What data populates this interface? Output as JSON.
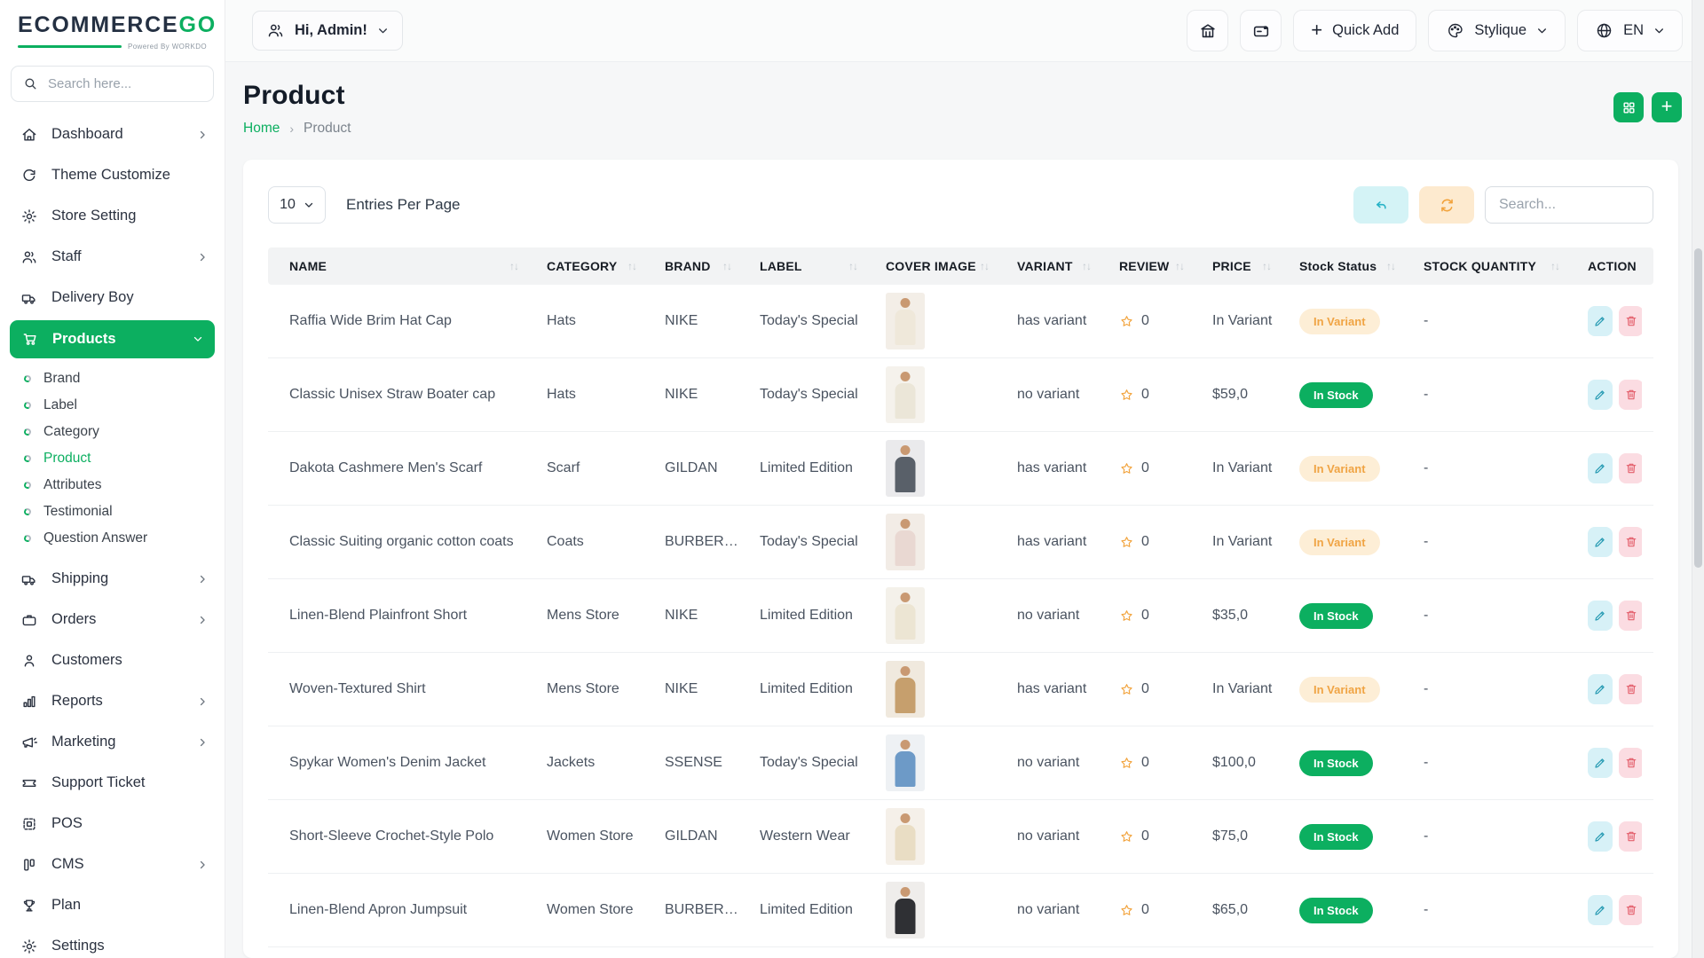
{
  "brand": {
    "logo_main": "ECOMMERCE",
    "logo_accent": "GO",
    "powered_by": "Powered By WORKDO",
    "accent_color": "#0caf60"
  },
  "sidebar": {
    "search_placeholder": "Search here...",
    "search_icon": "search-icon",
    "items": [
      {
        "label": "Dashboard",
        "icon": "home",
        "chevron": "right",
        "active": false
      },
      {
        "label": "Theme Customize",
        "icon": "theme",
        "chevron": null,
        "active": false
      },
      {
        "label": "Store Setting",
        "icon": "gear",
        "chevron": null,
        "active": false
      },
      {
        "label": "Staff",
        "icon": "users",
        "chevron": "right",
        "active": false
      },
      {
        "label": "Delivery Boy",
        "icon": "truck",
        "chevron": null,
        "active": false
      },
      {
        "label": "Products",
        "icon": "cart",
        "chevron": "down",
        "active": true,
        "submenu": [
          {
            "label": "Brand",
            "active": false
          },
          {
            "label": "Label",
            "active": false
          },
          {
            "label": "Category",
            "active": false
          },
          {
            "label": "Product",
            "active": true
          },
          {
            "label": "Attributes",
            "active": false
          },
          {
            "label": "Testimonial",
            "active": false
          },
          {
            "label": "Question Answer",
            "active": false
          }
        ]
      },
      {
        "label": "Shipping",
        "icon": "truck",
        "chevron": "right",
        "active": false
      },
      {
        "label": "Orders",
        "icon": "briefcase",
        "chevron": "right",
        "active": false
      },
      {
        "label": "Customers",
        "icon": "user",
        "chevron": null,
        "active": false
      },
      {
        "label": "Reports",
        "icon": "chart",
        "chevron": "right",
        "active": false
      },
      {
        "label": "Marketing",
        "icon": "megaphone",
        "chevron": "right",
        "active": false
      },
      {
        "label": "Support Ticket",
        "icon": "ticket",
        "chevron": null,
        "active": false
      },
      {
        "label": "POS",
        "icon": "pos",
        "chevron": null,
        "active": false
      },
      {
        "label": "CMS",
        "icon": "cms",
        "chevron": "right",
        "active": false
      },
      {
        "label": "Plan",
        "icon": "trophy",
        "chevron": null,
        "active": false
      },
      {
        "label": "Settings",
        "icon": "gear",
        "chevron": null,
        "active": false
      }
    ]
  },
  "header": {
    "user_label": "Hi, Admin!",
    "user_icon": "users",
    "storefront_icon": "storefront",
    "mail_icon": "mail",
    "quick_add_label": "Quick Add",
    "store_icon": "palette",
    "store_name": "Stylique",
    "language_icon": "globe",
    "language": "EN"
  },
  "page": {
    "title": "Product",
    "breadcrumb_home": "Home",
    "breadcrumb_separator": "›",
    "breadcrumb_current": "Product",
    "grid_view_icon": "grid",
    "add_icon": "plus"
  },
  "toolbar": {
    "entries_value": "10",
    "entries_label": "Entries Per Page",
    "undo_icon": "undo",
    "refresh_icon": "refresh",
    "search_placeholder": "Search..."
  },
  "table": {
    "columns": [
      {
        "label": "NAME",
        "sortable": true
      },
      {
        "label": "CATEGORY",
        "sortable": true
      },
      {
        "label": "BRAND",
        "sortable": true
      },
      {
        "label": "LABEL",
        "sortable": true
      },
      {
        "label": "COVER IMAGE",
        "sortable": true
      },
      {
        "label": "VARIANT",
        "sortable": true
      },
      {
        "label": "REVIEW",
        "sortable": true
      },
      {
        "label": "PRICE",
        "sortable": true
      },
      {
        "label": "Stock Status",
        "sortable": true
      },
      {
        "label": "STOCK QUANTITY",
        "sortable": true
      },
      {
        "label": "ACTION",
        "sortable": false
      }
    ],
    "badge_colors": {
      "stock_bg": "#0caf60",
      "stock_text": "#ffffff",
      "variant_bg": "#fdeed6",
      "variant_text": "#f0a444"
    },
    "rows": [
      {
        "name": "Raffia Wide Brim Hat Cap",
        "category": "Hats",
        "brand": "NIKE",
        "label": "Today's Special",
        "variant": "has variant",
        "review": "0",
        "price": "In Variant",
        "stock_status": "In Variant",
        "stock_type": "variant",
        "stock_quantity": "-",
        "cover": {
          "bg": "#f3eee7",
          "cloth": "#efe8da",
          "skin": "#c99972"
        }
      },
      {
        "name": "Classic Unisex Straw Boater cap",
        "category": "Hats",
        "brand": "NIKE",
        "label": "Today's Special",
        "variant": "no variant",
        "review": "0",
        "price": "$59,0",
        "stock_status": "In Stock",
        "stock_type": "stock",
        "stock_quantity": "-",
        "cover": {
          "bg": "#f5f2ec",
          "cloth": "#ebe6d8",
          "skin": "#c99972"
        }
      },
      {
        "name": "Dakota Cashmere Men's Scarf",
        "category": "Scarf",
        "brand": "GILDAN",
        "label": "Limited Edition",
        "variant": "has variant",
        "review": "0",
        "price": "In Variant",
        "stock_status": "In Variant",
        "stock_type": "variant",
        "stock_quantity": "-",
        "cover": {
          "bg": "#eaeaec",
          "cloth": "#596069",
          "skin": "#c99972"
        }
      },
      {
        "name": "Classic Suiting organic cotton coats",
        "category": "Coats",
        "brand": "BURBERRY",
        "label": "Today's Special",
        "variant": "has variant",
        "review": "0",
        "price": "In Variant",
        "stock_status": "In Variant",
        "stock_type": "variant",
        "stock_quantity": "-",
        "cover": {
          "bg": "#f2ece6",
          "cloth": "#e9d8d2",
          "skin": "#c99972"
        }
      },
      {
        "name": "Linen-Blend Plainfront Short",
        "category": "Mens Store",
        "brand": "NIKE",
        "label": "Limited Edition",
        "variant": "no variant",
        "review": "0",
        "price": "$35,0",
        "stock_status": "In Stock",
        "stock_type": "stock",
        "stock_quantity": "-",
        "cover": {
          "bg": "#f4f1ea",
          "cloth": "#ece5d3",
          "skin": "#c99972"
        }
      },
      {
        "name": "Woven-Textured Shirt",
        "category": "Mens Store",
        "brand": "NIKE",
        "label": "Limited Edition",
        "variant": "has variant",
        "review": "0",
        "price": "In Variant",
        "stock_status": "In Variant",
        "stock_type": "variant",
        "stock_quantity": "-",
        "cover": {
          "bg": "#f0e9de",
          "cloth": "#c69f6d",
          "skin": "#c99972"
        }
      },
      {
        "name": "Spykar Women's Denim Jacket",
        "category": "Jackets",
        "brand": "SSENSE",
        "label": "Today's Special",
        "variant": "no variant",
        "review": "0",
        "price": "$100,0",
        "stock_status": "In Stock",
        "stock_type": "stock",
        "stock_quantity": "-",
        "cover": {
          "bg": "#eef1f4",
          "cloth": "#6d9ac7",
          "skin": "#c99972"
        }
      },
      {
        "name": "Short-Sleeve Crochet-Style Polo",
        "category": "Women Store",
        "brand": "GILDAN",
        "label": "Western Wear",
        "variant": "no variant",
        "review": "0",
        "price": "$75,0",
        "stock_status": "In Stock",
        "stock_type": "stock",
        "stock_quantity": "-",
        "cover": {
          "bg": "#f5f0e9",
          "cloth": "#e9ddc4",
          "skin": "#c99972"
        }
      },
      {
        "name": "Linen-Blend Apron Jumpsuit",
        "category": "Women Store",
        "brand": "BURBERRY",
        "label": "Limited Edition",
        "variant": "no variant",
        "review": "0",
        "price": "$65,0",
        "stock_status": "In Stock",
        "stock_type": "stock",
        "stock_quantity": "-",
        "cover": {
          "bg": "#efedeb",
          "cloth": "#2f3034",
          "skin": "#c99972"
        }
      }
    ]
  }
}
